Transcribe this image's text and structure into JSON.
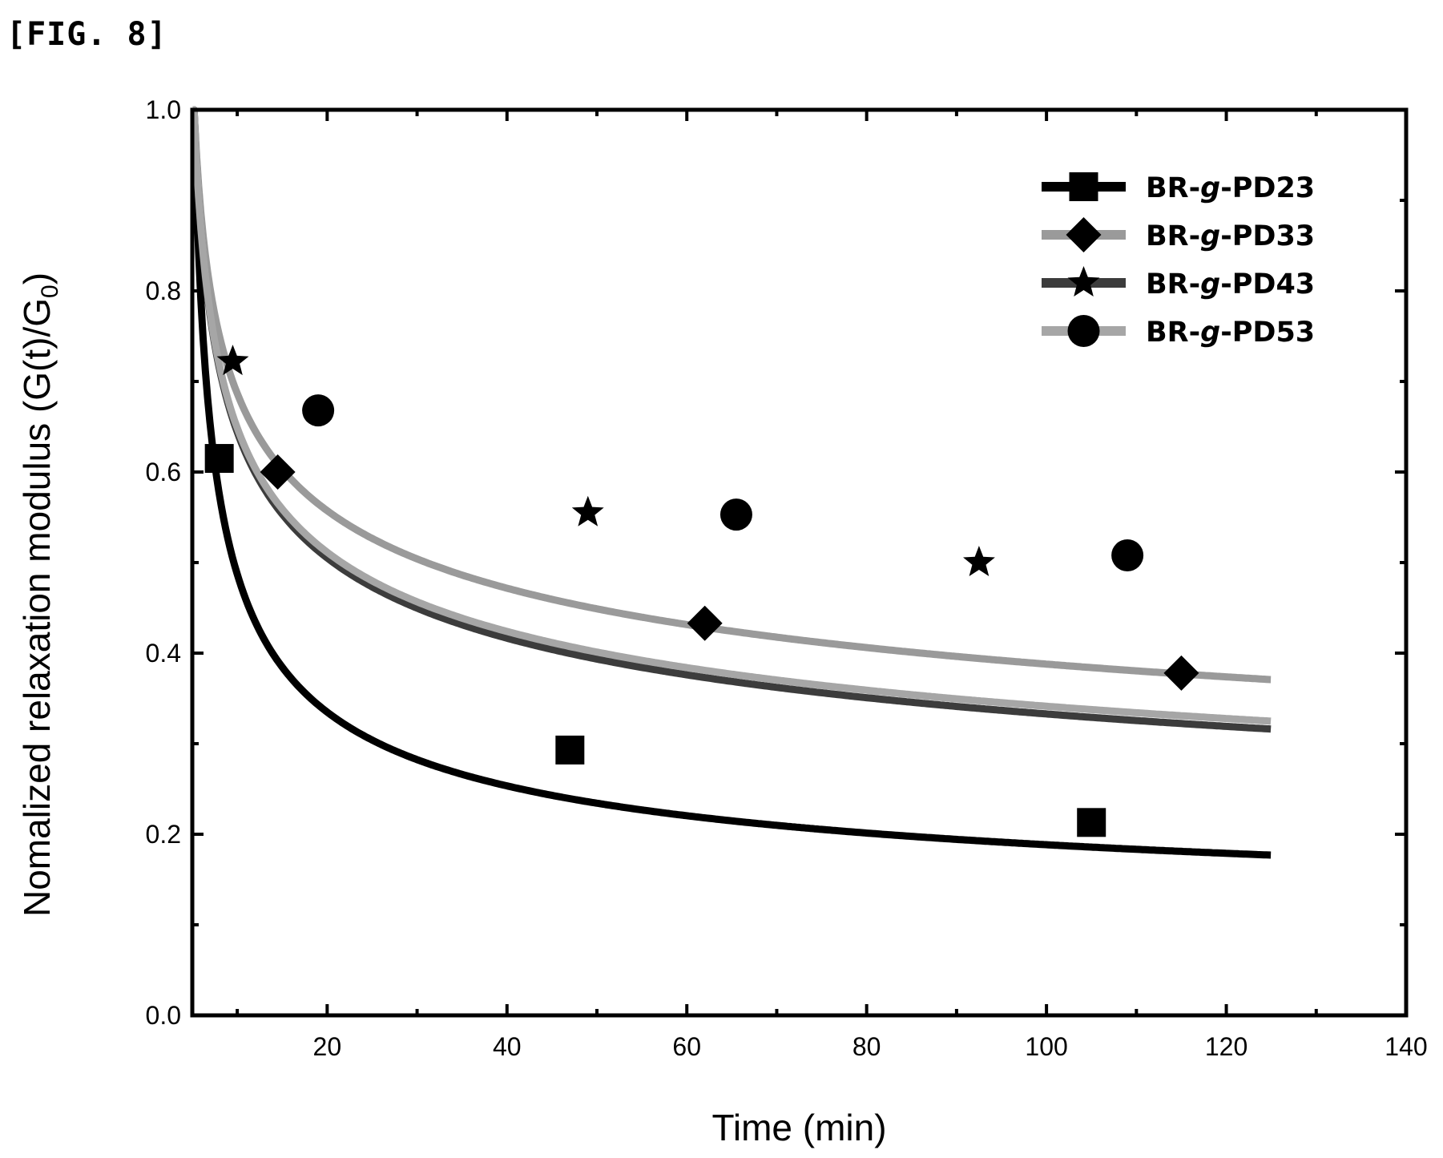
{
  "figure_label": "[FIG. 8]",
  "chart_data": {
    "type": "line",
    "title": "",
    "xlabel": "Time (min)",
    "ylabel_main": "Nomalized relaxation modulus (G(t)/G",
    "ylabel_sub": "0",
    "ylabel_end": ")",
    "xlim": [
      5,
      140
    ],
    "ylim": [
      0.0,
      1.0
    ],
    "xticks": [
      20,
      40,
      60,
      80,
      100,
      120,
      140
    ],
    "xminor": [
      10,
      30,
      50,
      70,
      90,
      110,
      130
    ],
    "yticks": [
      0.0,
      0.2,
      0.4,
      0.6,
      0.8,
      1.0
    ],
    "yminor": [
      0.1,
      0.3,
      0.5,
      0.7,
      0.9
    ],
    "legend_position": "top-right",
    "grid": false,
    "series": [
      {
        "name": "BR-g-PD23",
        "name_parts": [
          "BR-",
          "g",
          "-PD23"
        ],
        "marker": "square",
        "color": "#000000",
        "curve": {
          "start": 1.0,
          "t0": 5.2,
          "a": 0.075,
          "b": 0.46
        },
        "points": [
          {
            "x": 8.0,
            "y": 0.615
          },
          {
            "x": 47.0,
            "y": 0.293
          },
          {
            "x": 105.0,
            "y": 0.213
          }
        ]
      },
      {
        "name": "BR-g-PD33",
        "name_parts": [
          "BR-",
          "g",
          "-PD33"
        ],
        "marker": "diamond",
        "color": "#9a9a9a",
        "curve": {
          "start": 1.0,
          "t0": 5.2,
          "a": 0.058,
          "b": 0.23
        },
        "points": [
          {
            "x": 14.5,
            "y": 0.6
          },
          {
            "x": 62.0,
            "y": 0.433
          },
          {
            "x": 115.0,
            "y": 0.378
          }
        ]
      },
      {
        "name": "BR-g-PD43",
        "name_parts": [
          "BR-",
          "g",
          "-PD43"
        ],
        "marker": "star",
        "color": "#3c3c3c",
        "curve": {
          "start": 1.0,
          "t0": 5.2,
          "a": 0.058,
          "b": 0.27
        },
        "points": [
          {
            "x": 9.5,
            "y": 0.722
          },
          {
            "x": 49.0,
            "y": 0.555
          },
          {
            "x": 92.5,
            "y": 0.5
          }
        ]
      },
      {
        "name": "BR-g-PD53",
        "name_parts": [
          "BR-",
          "g",
          "-PD53"
        ],
        "marker": "circle",
        "color": "#a6a6a6",
        "curve": {
          "start": 1.0,
          "t0": 5.2,
          "a": 0.07,
          "b": 0.27
        },
        "points": [
          {
            "x": 19.0,
            "y": 0.668
          },
          {
            "x": 65.5,
            "y": 0.553
          },
          {
            "x": 109.0,
            "y": 0.508
          }
        ]
      }
    ],
    "curve_end_x": 125
  }
}
